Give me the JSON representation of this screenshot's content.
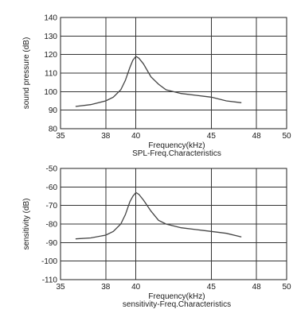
{
  "chart_data": [
    {
      "type": "line",
      "xlabel": "Frequency(kHz)",
      "caption": "SPL-Freq.Characteristics",
      "ylabel": "sound pressure (dB)",
      "xlim": [
        35,
        50
      ],
      "ylim": [
        80,
        140
      ],
      "x_ticks": [
        35,
        38,
        40,
        45,
        48,
        50
      ],
      "x_tick_labels": [
        "35",
        "38",
        "40",
        "45",
        "48",
        "50"
      ],
      "y_ticks": [
        80,
        90,
        100,
        110,
        120,
        130,
        140
      ],
      "y_tick_labels": [
        "80",
        "90",
        "100",
        "110",
        "120",
        "130",
        "140"
      ],
      "grid": true,
      "series": [
        {
          "x": [
            36,
            37,
            38,
            38.5,
            39,
            39.3,
            39.6,
            39.8,
            40,
            40.2,
            40.5,
            41,
            41.5,
            42,
            43,
            44,
            45,
            46,
            47
          ],
          "y": [
            92,
            93,
            95,
            97,
            101,
            106,
            113,
            117,
            119,
            118,
            115,
            108,
            104,
            101,
            99,
            98,
            97,
            95,
            94
          ]
        }
      ]
    },
    {
      "type": "line",
      "xlabel": "Frequency(kHz)",
      "caption": "sensitivity-Freq.Characteristics",
      "ylabel": "sensitivity (dB)",
      "xlim": [
        35,
        50
      ],
      "ylim": [
        -110,
        -50
      ],
      "x_ticks": [
        35,
        38,
        40,
        45,
        48,
        50
      ],
      "x_tick_labels": [
        "35",
        "38",
        "40",
        "45",
        "48",
        "50"
      ],
      "y_ticks": [
        -110,
        -100,
        -90,
        -80,
        -70,
        -60,
        -50
      ],
      "y_tick_labels": [
        "-110",
        "-100",
        "-90",
        "-80",
        "-70",
        "-60",
        "-50"
      ],
      "grid": true,
      "series": [
        {
          "x": [
            36,
            37,
            38,
            38.5,
            39,
            39.3,
            39.6,
            39.8,
            40,
            40.2,
            40.5,
            41,
            41.5,
            42,
            43,
            44,
            45,
            46,
            47
          ],
          "y": [
            -88,
            -87.5,
            -86,
            -84,
            -80,
            -75,
            -68,
            -65,
            -63,
            -64,
            -67,
            -73,
            -78,
            -80,
            -82,
            -83,
            -84,
            -85,
            -87
          ]
        }
      ]
    }
  ]
}
